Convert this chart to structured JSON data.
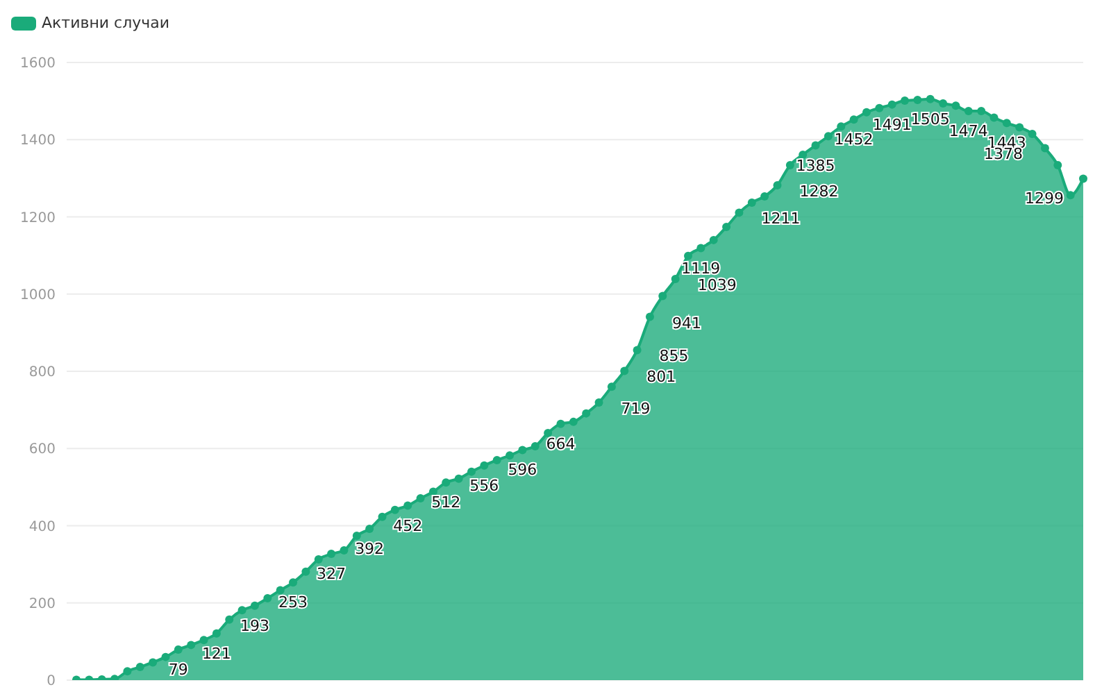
{
  "chart_data": {
    "type": "area",
    "categories": [
      null,
      null,
      null,
      null,
      null,
      null,
      null,
      null,
      null,
      null,
      null,
      null,
      null,
      null,
      null,
      null,
      null,
      null,
      null,
      null,
      null,
      null,
      null,
      null,
      null,
      null,
      null,
      null,
      null,
      null,
      null,
      null,
      null,
      null,
      null,
      null,
      null,
      null,
      null,
      null,
      null,
      null,
      null,
      null,
      null,
      null,
      null,
      null,
      null,
      null,
      null,
      null,
      null,
      null,
      null,
      null,
      null,
      null,
      null,
      null,
      null,
      null,
      null,
      null,
      null,
      null,
      null,
      null,
      null,
      null,
      null,
      null,
      null,
      null,
      null,
      null,
      null,
      null,
      null,
      null
    ],
    "series": [
      {
        "name": "Активни случаи",
        "color": "#1aab7a",
        "values": [
          1,
          1,
          2,
          3,
          23,
          34,
          46,
          60,
          79,
          91,
          104,
          121,
          157,
          181,
          193,
          212,
          233,
          253,
          281,
          313,
          327,
          336,
          374,
          392,
          423,
          441,
          452,
          471,
          488,
          512,
          522,
          540,
          556,
          570,
          582,
          596,
          606,
          640,
          664,
          669,
          691,
          719,
          760,
          801,
          855,
          941,
          995,
          1039,
          1099,
          1119,
          1140,
          1174,
          1211,
          1237,
          1253,
          1282,
          1334,
          1361,
          1385,
          1409,
          1434,
          1452,
          1471,
          1482,
          1491,
          1501,
          1503,
          1505,
          1494,
          1488,
          1474,
          1474,
          1457,
          1443,
          1432,
          1415,
          1378,
          1334,
          1256,
          1299
        ],
        "value_labels": [
          null,
          null,
          null,
          null,
          null,
          null,
          null,
          null,
          "79",
          null,
          null,
          "121",
          null,
          null,
          "193",
          null,
          null,
          "253",
          null,
          null,
          "327",
          null,
          null,
          "392",
          null,
          null,
          "452",
          null,
          null,
          "512",
          null,
          null,
          "556",
          null,
          null,
          "596",
          null,
          null,
          "664",
          null,
          null,
          "719",
          null,
          "801",
          "855",
          "941",
          null,
          "1039",
          null,
          "1119",
          null,
          null,
          "1211",
          null,
          null,
          "1282",
          null,
          null,
          "1385",
          null,
          null,
          "1452",
          null,
          null,
          "1491",
          null,
          null,
          "1505",
          null,
          null,
          "1474",
          null,
          null,
          "1443",
          null,
          null,
          "1378",
          null,
          null,
          "1299"
        ]
      }
    ],
    "ylim": [
      0,
      1600
    ],
    "yticks": [
      0,
      200,
      400,
      600,
      800,
      1000,
      1200,
      1400,
      1600
    ],
    "grid": "y",
    "legend": "top left",
    "tick_labels": "y",
    "marker": "circle"
  }
}
